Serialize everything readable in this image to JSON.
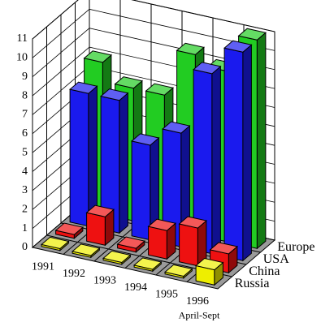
{
  "chart_data": {
    "type": "bar3d",
    "categories": [
      "1991",
      "1992",
      "1993",
      "1994",
      "1995",
      "1996"
    ],
    "annotation": "April-Sept",
    "series": [
      {
        "name": "Russia",
        "color": "#eeee00",
        "values": [
          0.1,
          0.1,
          0.1,
          0.1,
          0.1,
          0.8
        ]
      },
      {
        "name": "China",
        "color": "#ee1111",
        "values": [
          0.2,
          1.5,
          0.2,
          1.5,
          2,
          1
        ]
      },
      {
        "name": "USA",
        "color": "#1a1aee",
        "values": [
          7,
          7,
          5,
          6,
          9.5,
          11
        ]
      },
      {
        "name": "Europe",
        "color": "#22cc22",
        "values": [
          8,
          7,
          7,
          9.5,
          9,
          11
        ]
      }
    ],
    "ylim": [
      0,
      11
    ],
    "yticks": [
      0,
      1,
      2,
      3,
      4,
      5,
      6,
      7,
      8,
      9,
      10,
      11
    ],
    "grid": true
  }
}
